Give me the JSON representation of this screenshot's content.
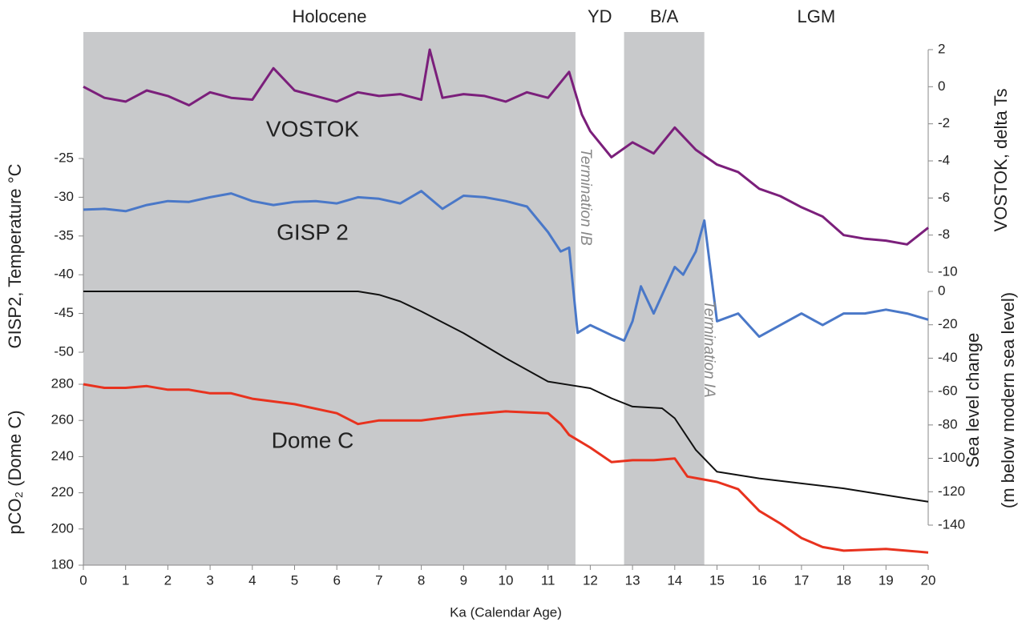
{
  "chart_data": {
    "type": "line",
    "xlabel": "Ka (Calendar Age)",
    "xlim": [
      0,
      20
    ],
    "xticks": [
      0,
      1,
      2,
      3,
      4,
      5,
      6,
      7,
      8,
      9,
      10,
      11,
      12,
      13,
      14,
      15,
      16,
      17,
      18,
      19,
      20
    ],
    "periods": [
      {
        "label": "Holocene",
        "start": 0,
        "end": 11.65,
        "shaded": true
      },
      {
        "label": "YD",
        "start": 11.65,
        "end": 12.8,
        "shaded": false
      },
      {
        "label": "B/A",
        "start": 12.8,
        "end": 14.7,
        "shaded": true
      },
      {
        "label": "LGM",
        "start": 14.7,
        "end": 20,
        "shaded": false
      }
    ],
    "shade_color": "#c8c9cb",
    "annotations": [
      "Termination IB",
      "Termination IA"
    ],
    "y_axes": [
      {
        "side": "left",
        "label": "GISP2, Temperature °C",
        "lim": [
          -50,
          -25
        ],
        "ticks": [
          -50,
          -45,
          -40,
          -35,
          -30,
          -25
        ]
      },
      {
        "side": "left",
        "label": "pCO₂ (Dome C)",
        "lim": [
          180,
          280
        ],
        "ticks": [
          180,
          200,
          220,
          240,
          260,
          280
        ]
      },
      {
        "side": "right",
        "label": "VOSTOK, delta Ts",
        "lim": [
          -10,
          2
        ],
        "ticks": [
          -10,
          -8,
          -6,
          -4,
          -2,
          0,
          2
        ]
      },
      {
        "side": "right",
        "label": "Sea level change",
        "label2": "(m below modern sea level)",
        "lim": [
          -140,
          0
        ],
        "ticks": [
          -140,
          -120,
          -100,
          -80,
          -60,
          -40,
          -20,
          0
        ]
      }
    ],
    "series": [
      {
        "name": "VOSTOK",
        "color": "#7b1f7b",
        "axis": 2,
        "x": [
          0,
          0.5,
          1,
          1.5,
          2,
          2.5,
          3,
          3.5,
          4,
          4.5,
          5,
          5.5,
          6,
          6.5,
          7,
          7.5,
          8,
          8.2,
          8.5,
          9,
          9.5,
          10,
          10.5,
          11,
          11.5,
          11.8,
          12,
          12.5,
          13,
          13.5,
          14,
          14.5,
          15,
          15.5,
          16,
          16.5,
          17,
          17.5,
          18,
          18.5,
          19,
          19.5,
          20
        ],
        "values": [
          0,
          -0.6,
          -0.8,
          -0.2,
          -0.5,
          -1,
          -0.3,
          -0.6,
          -0.7,
          1,
          -0.2,
          -0.5,
          -0.8,
          -0.3,
          -0.5,
          -0.4,
          -0.7,
          2,
          -0.6,
          -0.4,
          -0.5,
          -0.8,
          -0.3,
          -0.6,
          0.8,
          -1.5,
          -2.4,
          -3.8,
          -3,
          -3.6,
          -2.2,
          -3.4,
          -4.2,
          -4.6,
          -5.5,
          -5.9,
          -6.5,
          -7,
          -8,
          -8.2,
          -8.3,
          -8.5,
          -7.6
        ]
      },
      {
        "name": "GISP 2",
        "color": "#4a78c8",
        "axis": 0,
        "x": [
          0,
          0.5,
          1,
          1.5,
          2,
          2.5,
          3,
          3.5,
          4,
          4.5,
          5,
          5.5,
          6,
          6.5,
          7,
          7.5,
          8,
          8.5,
          9,
          9.5,
          10,
          10.5,
          11,
          11.3,
          11.5,
          11.7,
          12,
          12.5,
          12.8,
          13,
          13.2,
          13.5,
          14,
          14.2,
          14.5,
          14.7,
          15,
          15.5,
          16,
          16.5,
          17,
          17.5,
          18,
          18.5,
          19,
          19.5,
          20
        ],
        "values": [
          -31.6,
          -31.5,
          -31.8,
          -31,
          -30.5,
          -30.6,
          -30,
          -29.5,
          -30.5,
          -31,
          -30.6,
          -30.5,
          -30.8,
          -30,
          -30.2,
          -30.8,
          -29.2,
          -31.5,
          -29.8,
          -30,
          -30.5,
          -31.2,
          -34.5,
          -37,
          -36.5,
          -47.5,
          -46.5,
          -47.8,
          -48.5,
          -46,
          -41.5,
          -45,
          -39,
          -40,
          -37,
          -33,
          -46,
          -45,
          -48,
          -46.5,
          -45,
          -46.5,
          -45,
          -45,
          -44.5,
          -45,
          -45.8
        ]
      },
      {
        "color": "#111111",
        "axis": 3,
        "x": [
          0,
          6.5,
          7,
          7.5,
          8,
          9,
          10,
          11,
          11.5,
          12,
          12.5,
          13,
          13.7,
          14,
          14.5,
          15,
          16,
          17,
          18,
          19,
          20
        ],
        "values": [
          0,
          0,
          -2,
          -6,
          -12,
          -25,
          -40,
          -54,
          -56,
          -58,
          -64,
          -69,
          -70,
          -76,
          -95,
          -108,
          -112,
          -115,
          -118,
          -122,
          -126
        ]
      },
      {
        "name": "Dome C",
        "color": "#e8321e",
        "axis": 1,
        "x": [
          0,
          0.5,
          1,
          1.5,
          2,
          2.5,
          3,
          3.5,
          4,
          5,
          6,
          6.5,
          7,
          8,
          9,
          10,
          11,
          11.3,
          11.5,
          12,
          12.5,
          13,
          13.5,
          14,
          14.3,
          15,
          15.5,
          16,
          16.5,
          17,
          17.5,
          18,
          19,
          20
        ],
        "values": [
          280,
          278,
          278,
          279,
          277,
          277,
          275,
          275,
          272,
          269,
          264,
          258,
          260,
          260,
          263,
          265,
          264,
          258,
          252,
          245,
          237,
          238,
          238,
          239,
          229,
          226,
          222,
          210,
          203,
          195,
          190,
          188,
          189,
          187
        ]
      }
    ]
  }
}
